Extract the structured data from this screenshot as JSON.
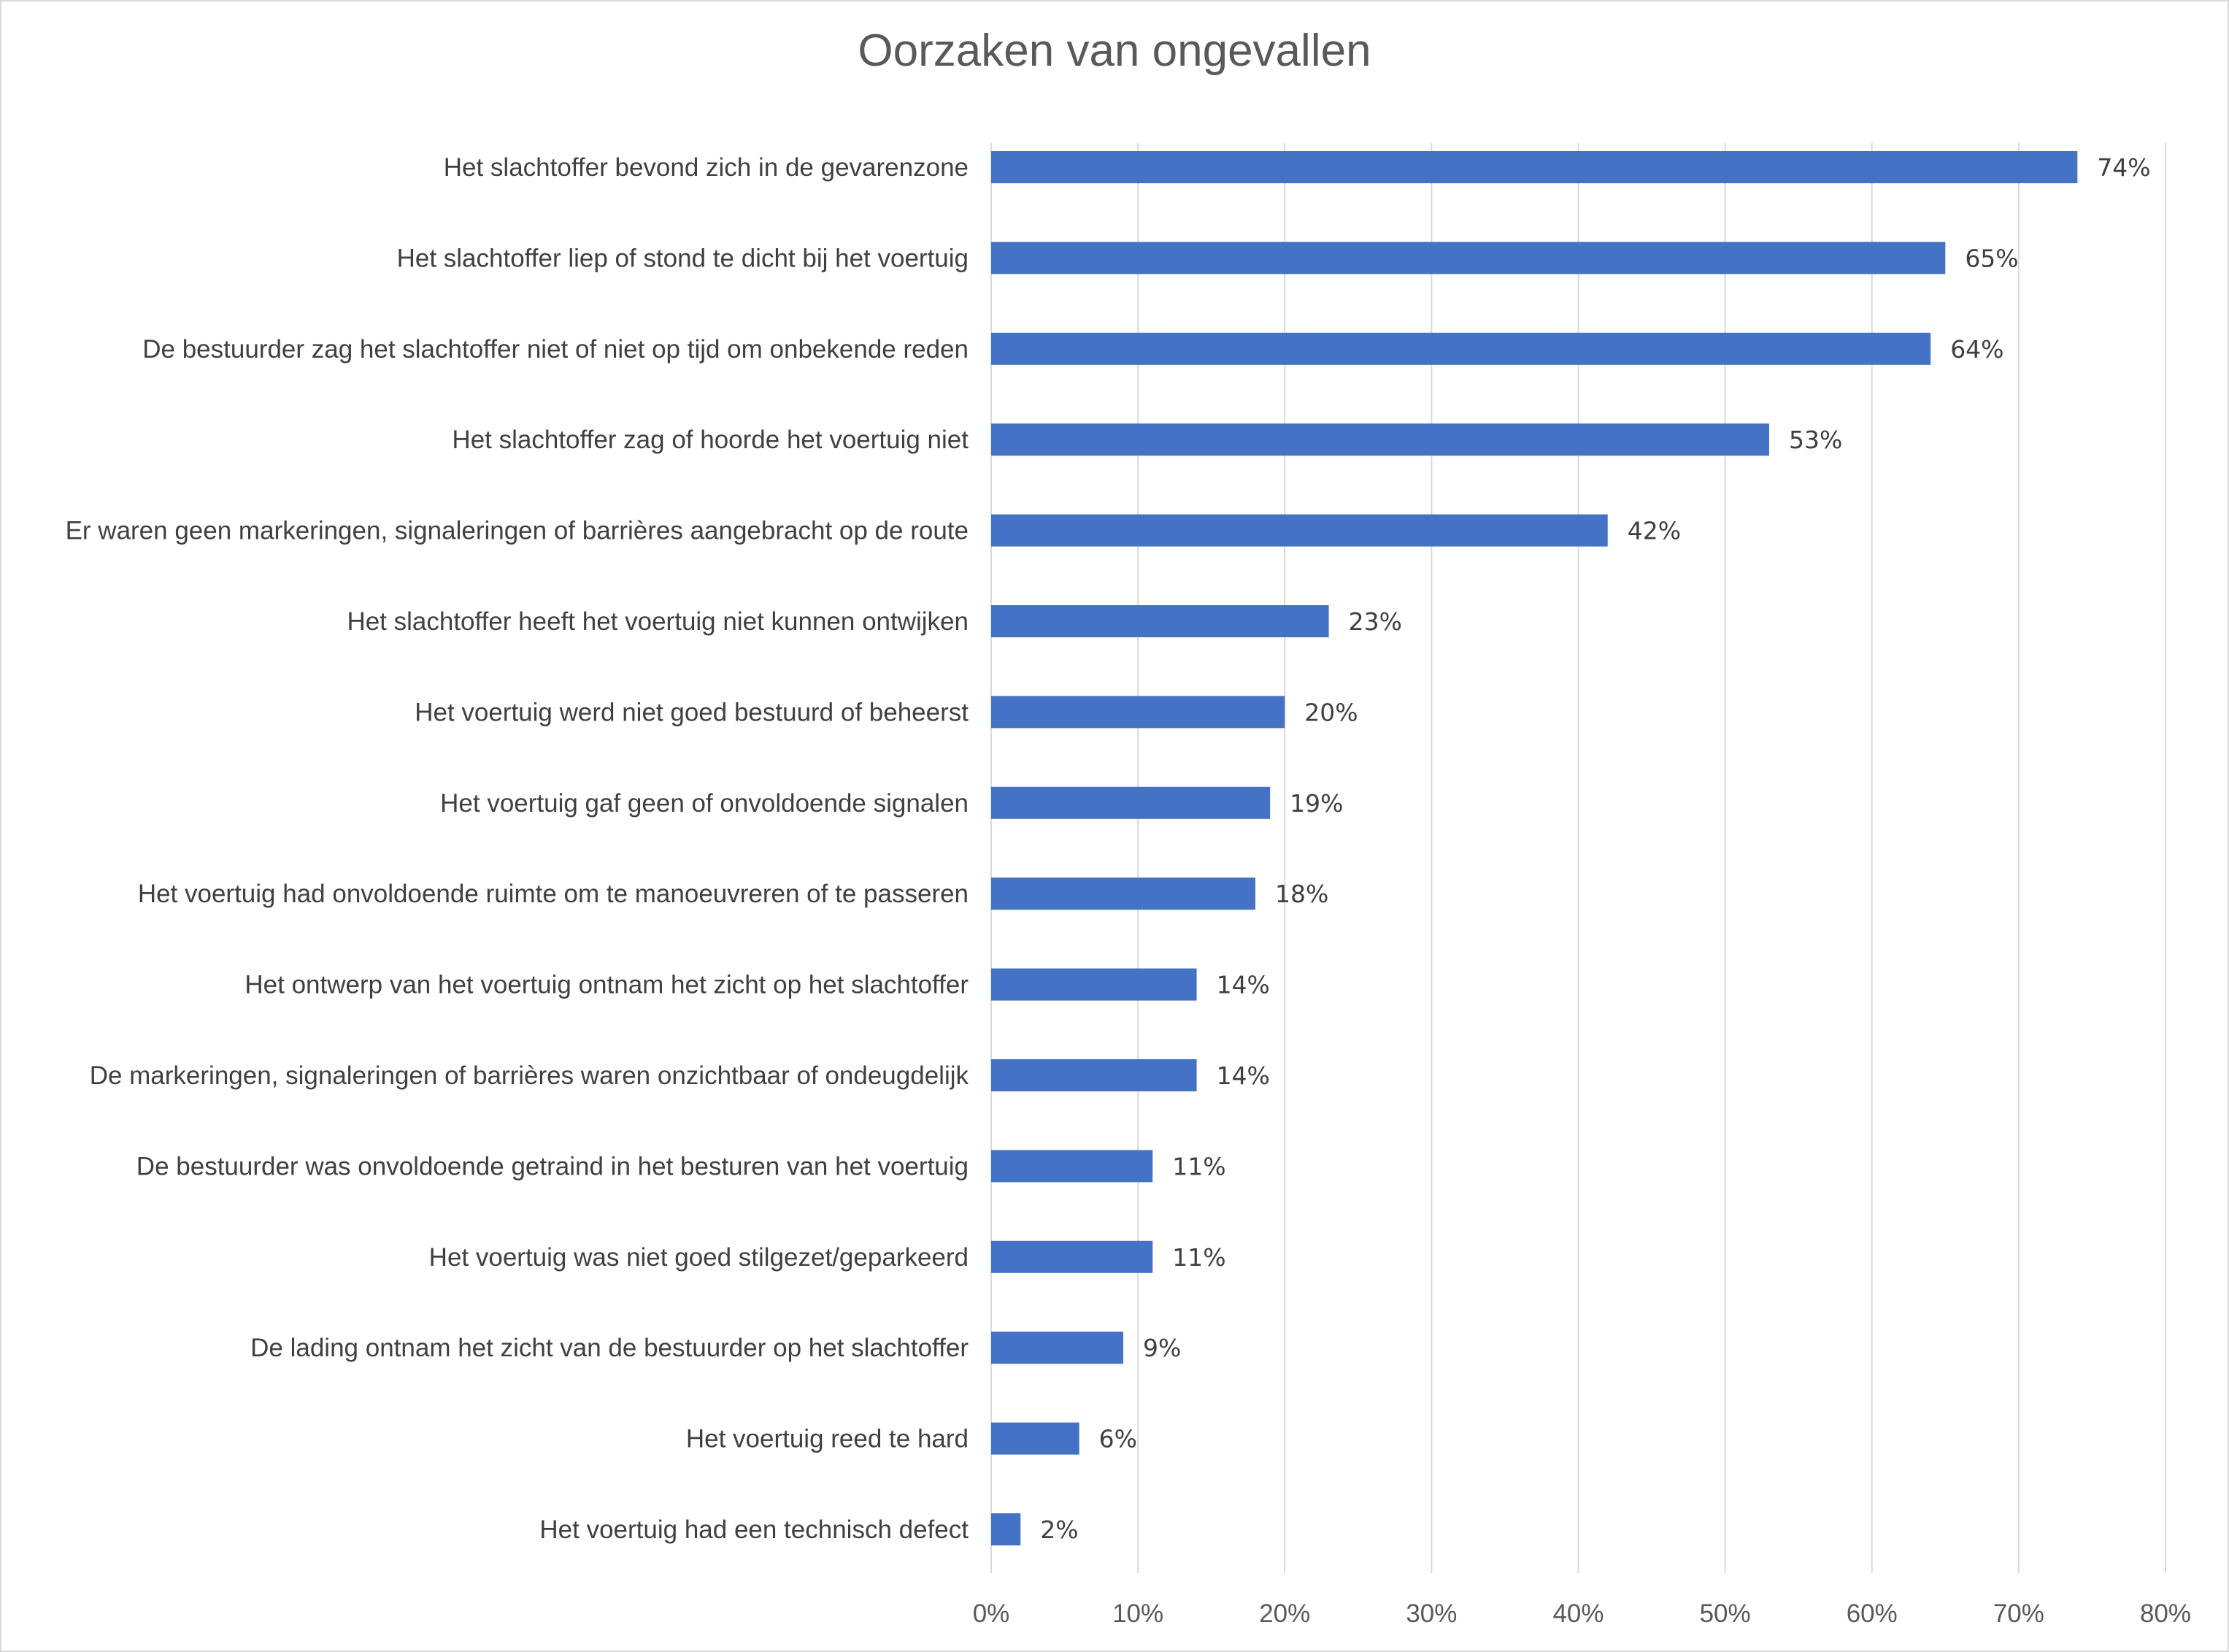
{
  "chart_data": {
    "type": "bar",
    "orientation": "horizontal",
    "title": "Oorzaken van ongevallen",
    "xlabel": "",
    "ylabel": "",
    "xlim": [
      0,
      80
    ],
    "x_ticks": [
      "0%",
      "10%",
      "20%",
      "30%",
      "40%",
      "50%",
      "60%",
      "70%",
      "80%"
    ],
    "grid": true,
    "legend": "none",
    "bar_color": "#4472C4",
    "categories": [
      "Het slachtoffer bevond zich in de gevarenzone",
      "Het slachtoffer liep of stond te dicht bij het voertuig",
      "De bestuurder zag het slachtoffer niet of niet op tijd om onbekende reden",
      "Het slachtoffer zag of hoorde het voertuig niet",
      "Er waren geen markeringen, signaleringen of barrières aangebracht op de route",
      "Het slachtoffer heeft het voertuig niet kunnen ontwijken",
      "Het voertuig werd niet goed bestuurd of beheerst",
      "Het voertuig gaf geen of onvoldoende signalen",
      "Het voertuig had onvoldoende ruimte om te manoeuvreren of te passeren",
      "Het ontwerp van het voertuig ontnam het zicht op het slachtoffer",
      "De markeringen, signaleringen of barrières waren onzichtbaar of ondeugdelijk",
      "De bestuurder was onvoldoende getraind in het besturen van het voertuig",
      "Het voertuig was niet goed stilgezet/geparkeerd",
      "De lading ontnam het zicht van de bestuurder op het slachtoffer",
      "Het voertuig reed te hard",
      "Het voertuig had een technisch defect"
    ],
    "values": [
      74,
      65,
      64,
      53,
      42,
      23,
      20,
      19,
      18,
      14,
      14,
      11,
      11,
      9,
      6,
      2
    ],
    "data_labels": [
      "74%",
      "65%",
      "64%",
      "53%",
      "42%",
      "23%",
      "20%",
      "19%",
      "18%",
      "14%",
      "14%",
      "11%",
      "11%",
      "9%",
      "6%",
      "2%"
    ]
  }
}
